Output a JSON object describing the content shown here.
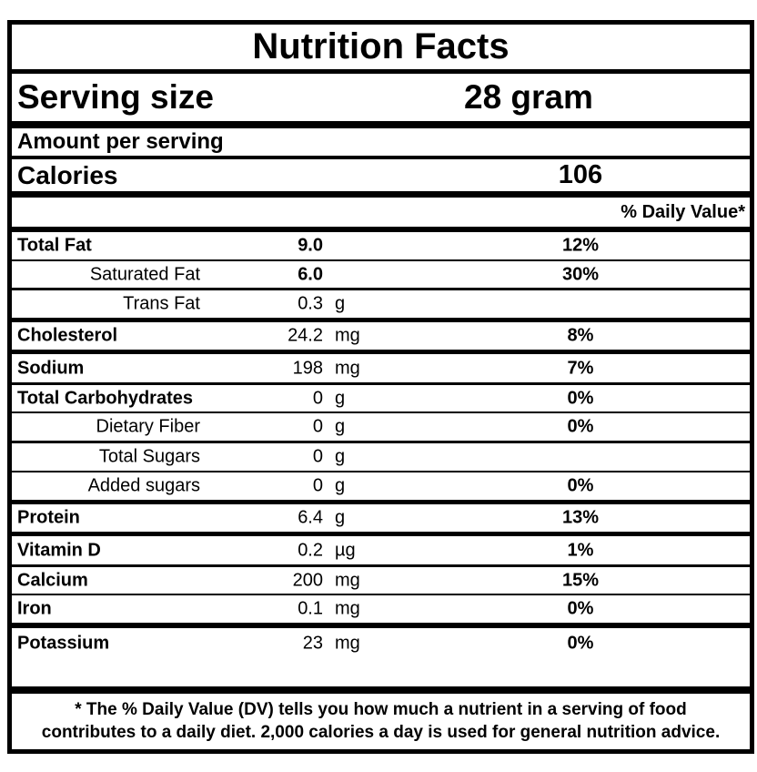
{
  "title": "Nutrition Facts",
  "serving": {
    "label": "Serving size",
    "value": "28 gram"
  },
  "amount_per_serving": "Amount per serving",
  "calories": {
    "label": "Calories",
    "value": "106"
  },
  "daily_value_header": "% Daily Value*",
  "rows": [
    {
      "label": "Total Fat",
      "value": "9.0",
      "unit": "",
      "pct": "12%"
    },
    {
      "label": "Saturated Fat",
      "value": "6.0",
      "unit": "",
      "pct": "30%"
    },
    {
      "label": "Trans Fat",
      "value": "0.3",
      "unit": "g",
      "pct": ""
    },
    {
      "label": "Cholesterol",
      "value": "24.2",
      "unit": "mg",
      "pct": "8%"
    },
    {
      "label": "Sodium",
      "value": "198",
      "unit": "mg",
      "pct": "7%"
    },
    {
      "label": "Total Carbohydrates",
      "value": "0",
      "unit": "g",
      "pct": "0%"
    },
    {
      "label": "Dietary Fiber",
      "value": "0",
      "unit": "g",
      "pct": "0%"
    },
    {
      "label": "Total Sugars",
      "value": "0",
      "unit": "g",
      "pct": ""
    },
    {
      "label": "Added sugars",
      "value": "0",
      "unit": "g",
      "pct": "0%"
    },
    {
      "label": "Protein",
      "value": "6.4",
      "unit": "g",
      "pct": "13%"
    },
    {
      "label": "Vitamin D",
      "value": "0.2",
      "unit": "µg",
      "pct": "1%"
    },
    {
      "label": "Calcium",
      "value": "200",
      "unit": "mg",
      "pct": "15%"
    },
    {
      "label": "Iron",
      "value": "0.1",
      "unit": "mg",
      "pct": "0%"
    },
    {
      "label": "Potassium",
      "value": "23",
      "unit": "mg",
      "pct": "0%"
    }
  ],
  "footer": {
    "line1": "* The % Daily Value (DV) tells you how much a nutrient in a serving of food",
    "line2": "contributes to a daily diet. 2,000 calories a day is used for general nutrition advice."
  },
  "colors": {
    "text": "#000000",
    "background": "#ffffff",
    "border": "#000000"
  }
}
